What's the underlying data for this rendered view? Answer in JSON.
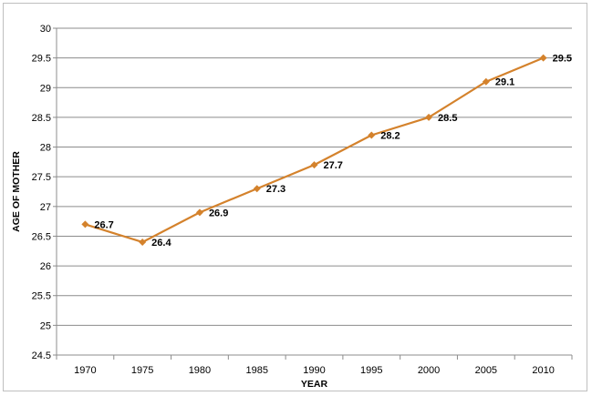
{
  "chart_data": {
    "type": "line",
    "xlabel": "YEAR",
    "ylabel": "AGE OF MOTHER",
    "x": [
      "1970",
      "1975",
      "1980",
      "1985",
      "1990",
      "1995",
      "2000",
      "2005",
      "2010"
    ],
    "ylim": [
      24.5,
      30
    ],
    "yticks": [
      "24.5",
      "25",
      "25.5",
      "26",
      "26.5",
      "27",
      "27.5",
      "28",
      "28.5",
      "29",
      "29.5",
      "30"
    ],
    "series": [
      {
        "values": [
          26.7,
          26.4,
          26.9,
          27.3,
          27.7,
          28.2,
          28.5,
          29.1,
          29.5
        ],
        "labels": [
          "26.7",
          "26.4",
          "26.9",
          "27.3",
          "27.7",
          "28.2",
          "28.5",
          "29.1",
          "29.5"
        ],
        "color": "#d4822c",
        "marker": "diamond"
      }
    ],
    "grid": true,
    "gridColor": "#8c8c8c"
  }
}
